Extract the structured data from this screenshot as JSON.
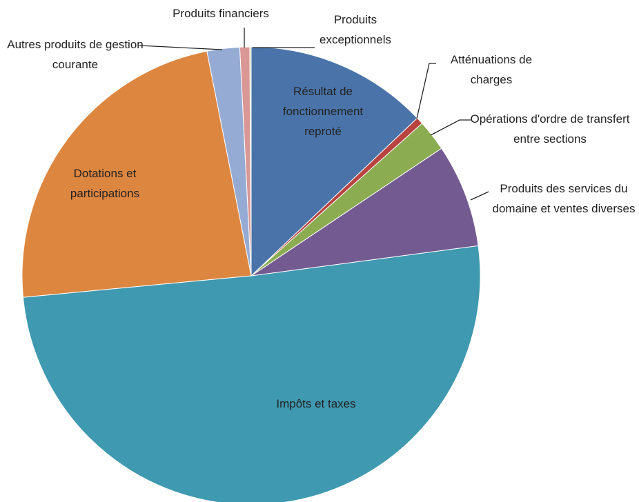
{
  "chart_data": {
    "type": "pie",
    "categories": [
      "Résultat de fonctionnement reproté",
      "Atténuations de charges",
      "Opérations d'ordre de transfert entre sections",
      "Produits des services du domaine et ventes diverses",
      "Impôts et taxes",
      "Dotations et participations",
      "Autres produits de gestion courante",
      "Produits financiers",
      "Produits exceptionnels"
    ],
    "values": [
      12.9,
      0.5,
      2.2,
      7.3,
      50.6,
      23.4,
      2.3,
      0.7,
      0.1
    ],
    "colors": [
      "#4a74a9",
      "#b84340",
      "#8bac50",
      "#735b92",
      "#3f99b0",
      "#dd8640",
      "#96abd3",
      "#d99896",
      "#c4d69b"
    ]
  }
}
